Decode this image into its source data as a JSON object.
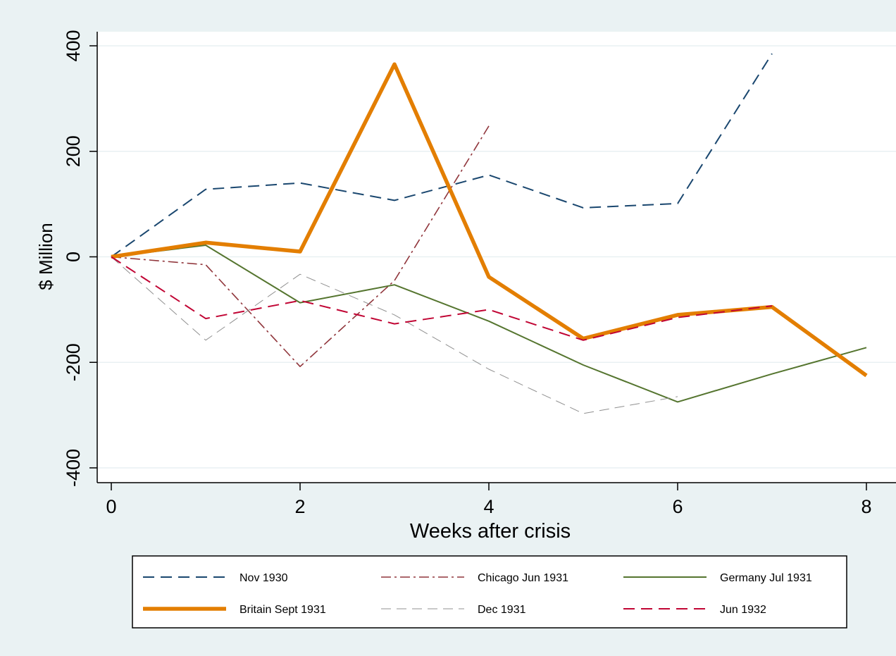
{
  "chart_data": {
    "type": "line",
    "title": "",
    "xlabel": "Weeks after crisis",
    "ylabel": "$ Million",
    "xlim": [
      0,
      8
    ],
    "ylim": [
      -400,
      400
    ],
    "x_ticks": [
      0,
      2,
      4,
      6,
      8
    ],
    "y_ticks": [
      -400,
      -200,
      0,
      200,
      400
    ],
    "grid": "horizontal",
    "legend": "bottom",
    "series": [
      {
        "name": "Nov 1930",
        "color": "#1a476f",
        "dash": "long-dash",
        "x": [
          0,
          1,
          2,
          3,
          4,
          5,
          6,
          7
        ],
        "values": [
          0,
          128,
          140,
          107,
          155,
          93,
          101,
          385
        ]
      },
      {
        "name": "Chicago Jun 1931",
        "color": "#90353b",
        "dash": "dash-dot",
        "x": [
          0,
          1,
          2,
          3,
          4
        ],
        "values": [
          0,
          -15,
          -208,
          -45,
          248
        ]
      },
      {
        "name": "Germany Jul 1931",
        "color": "#55752f",
        "dash": "solid",
        "x": [
          0,
          1,
          2,
          3,
          4,
          5,
          6,
          7,
          8
        ],
        "values": [
          0,
          22,
          -87,
          -53,
          -122,
          -205,
          -275,
          -222,
          -172
        ]
      },
      {
        "name": "Britain Sept 1931",
        "color": "#e37e00",
        "dash": "solid-thick",
        "x": [
          0,
          1,
          2,
          3,
          4,
          5,
          6,
          7,
          8
        ],
        "values": [
          0,
          27,
          10,
          365,
          -38,
          -155,
          -110,
          -95,
          -225
        ]
      },
      {
        "name": "Dec 1931",
        "color": "#909090",
        "dash": "thin-dash",
        "x": [
          0,
          1,
          2,
          3,
          4,
          5,
          6
        ],
        "values": [
          0,
          -158,
          -33,
          -110,
          -213,
          -297,
          -265
        ]
      },
      {
        "name": "Jun 1932",
        "color": "#c10534",
        "dash": "long-dash",
        "x": [
          0,
          1,
          2,
          3,
          4,
          5,
          6,
          7
        ],
        "values": [
          0,
          -117,
          -83,
          -127,
          -100,
          -158,
          -115,
          -93
        ]
      }
    ]
  }
}
